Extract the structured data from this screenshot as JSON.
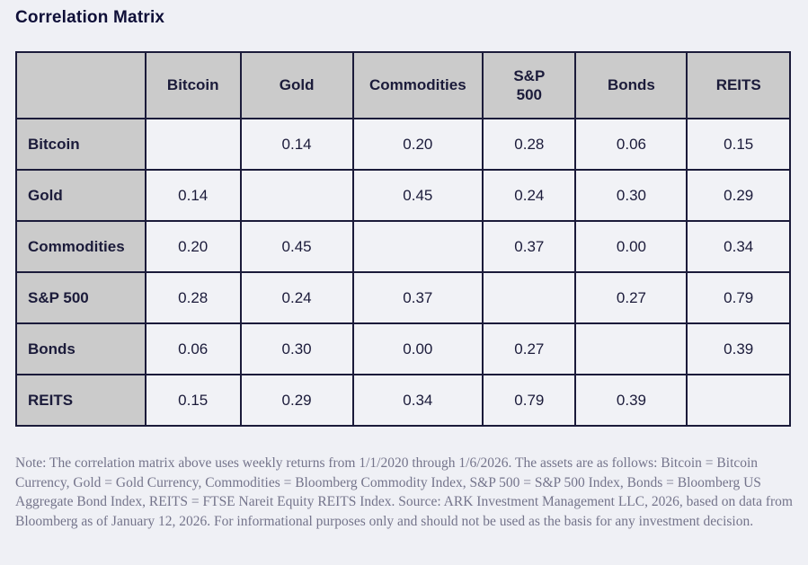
{
  "title": "Correlation Matrix",
  "table": {
    "columns": [
      {
        "label": ""
      },
      {
        "label": "Bitcoin"
      },
      {
        "label": "Gold"
      },
      {
        "label": "Commodities"
      },
      {
        "label": "S&P 500",
        "wrap": true
      },
      {
        "label": "Bonds"
      },
      {
        "label": "REITS"
      }
    ],
    "rows": [
      {
        "label": "Bitcoin",
        "values": [
          "",
          "0.14",
          "0.20",
          "0.28",
          "0.06",
          "0.15"
        ]
      },
      {
        "label": "Gold",
        "values": [
          "0.14",
          "",
          "0.45",
          "0.24",
          "0.30",
          "0.29"
        ]
      },
      {
        "label": "Commodities",
        "values": [
          "0.20",
          "0.45",
          "",
          "0.37",
          "0.00",
          "0.34"
        ]
      },
      {
        "label": "S&P 500",
        "values": [
          "0.28",
          "0.24",
          "0.37",
          "",
          "0.27",
          "0.79"
        ]
      },
      {
        "label": "Bonds",
        "values": [
          "0.06",
          "0.30",
          "0.00",
          "0.27",
          "",
          "0.39"
        ]
      },
      {
        "label": "REITS",
        "values": [
          "0.15",
          "0.29",
          "0.34",
          "0.79",
          "0.39",
          ""
        ]
      }
    ]
  },
  "note": "Note: The correlation matrix above uses weekly returns from 1/1/2020 through 1/6/2026. The assets are as follows: Bitcoin = Bitcoin Currency, Gold = Gold Currency, Commodities = Bloomberg Commodity Index, S&P 500 = S&P 500 Index, Bonds = Bloomberg US Aggregate Bond Index, REITS = FTSE Nareit Equity REITS Index. Source: ARK Investment Management LLC, 2026, based on data from Bloomberg as of January 12, 2026. For informational purposes only and should not be used as the basis for any investment decision.",
  "colors": {
    "page_background": "#eff0f5",
    "header_cell_background": "#cbcbcb",
    "cell_background": "#f1f2f6",
    "border": "#1b1b3a",
    "text": "#1b1b3a",
    "note_text": "#74748b"
  },
  "chart_data": {
    "type": "table",
    "title": "Correlation Matrix",
    "categories": [
      "Bitcoin",
      "Gold",
      "Commodities",
      "S&P 500",
      "Bonds",
      "REITS"
    ],
    "matrix": [
      [
        null,
        0.14,
        0.2,
        0.28,
        0.06,
        0.15
      ],
      [
        0.14,
        null,
        0.45,
        0.24,
        0.3,
        0.29
      ],
      [
        0.2,
        0.45,
        null,
        0.37,
        0.0,
        0.34
      ],
      [
        0.28,
        0.24,
        0.37,
        null,
        0.27,
        0.79
      ],
      [
        0.06,
        0.3,
        0.0,
        0.27,
        null,
        0.39
      ],
      [
        0.15,
        0.29,
        0.34,
        0.79,
        0.39,
        null
      ]
    ],
    "layout_hints": {
      "diagonal_blank": true,
      "header_row_and_first_column_shaded": true,
      "column_width_pct": [
        16.7,
        12.3,
        14.5,
        16.8,
        12.0,
        14.4,
        13.3
      ]
    }
  }
}
